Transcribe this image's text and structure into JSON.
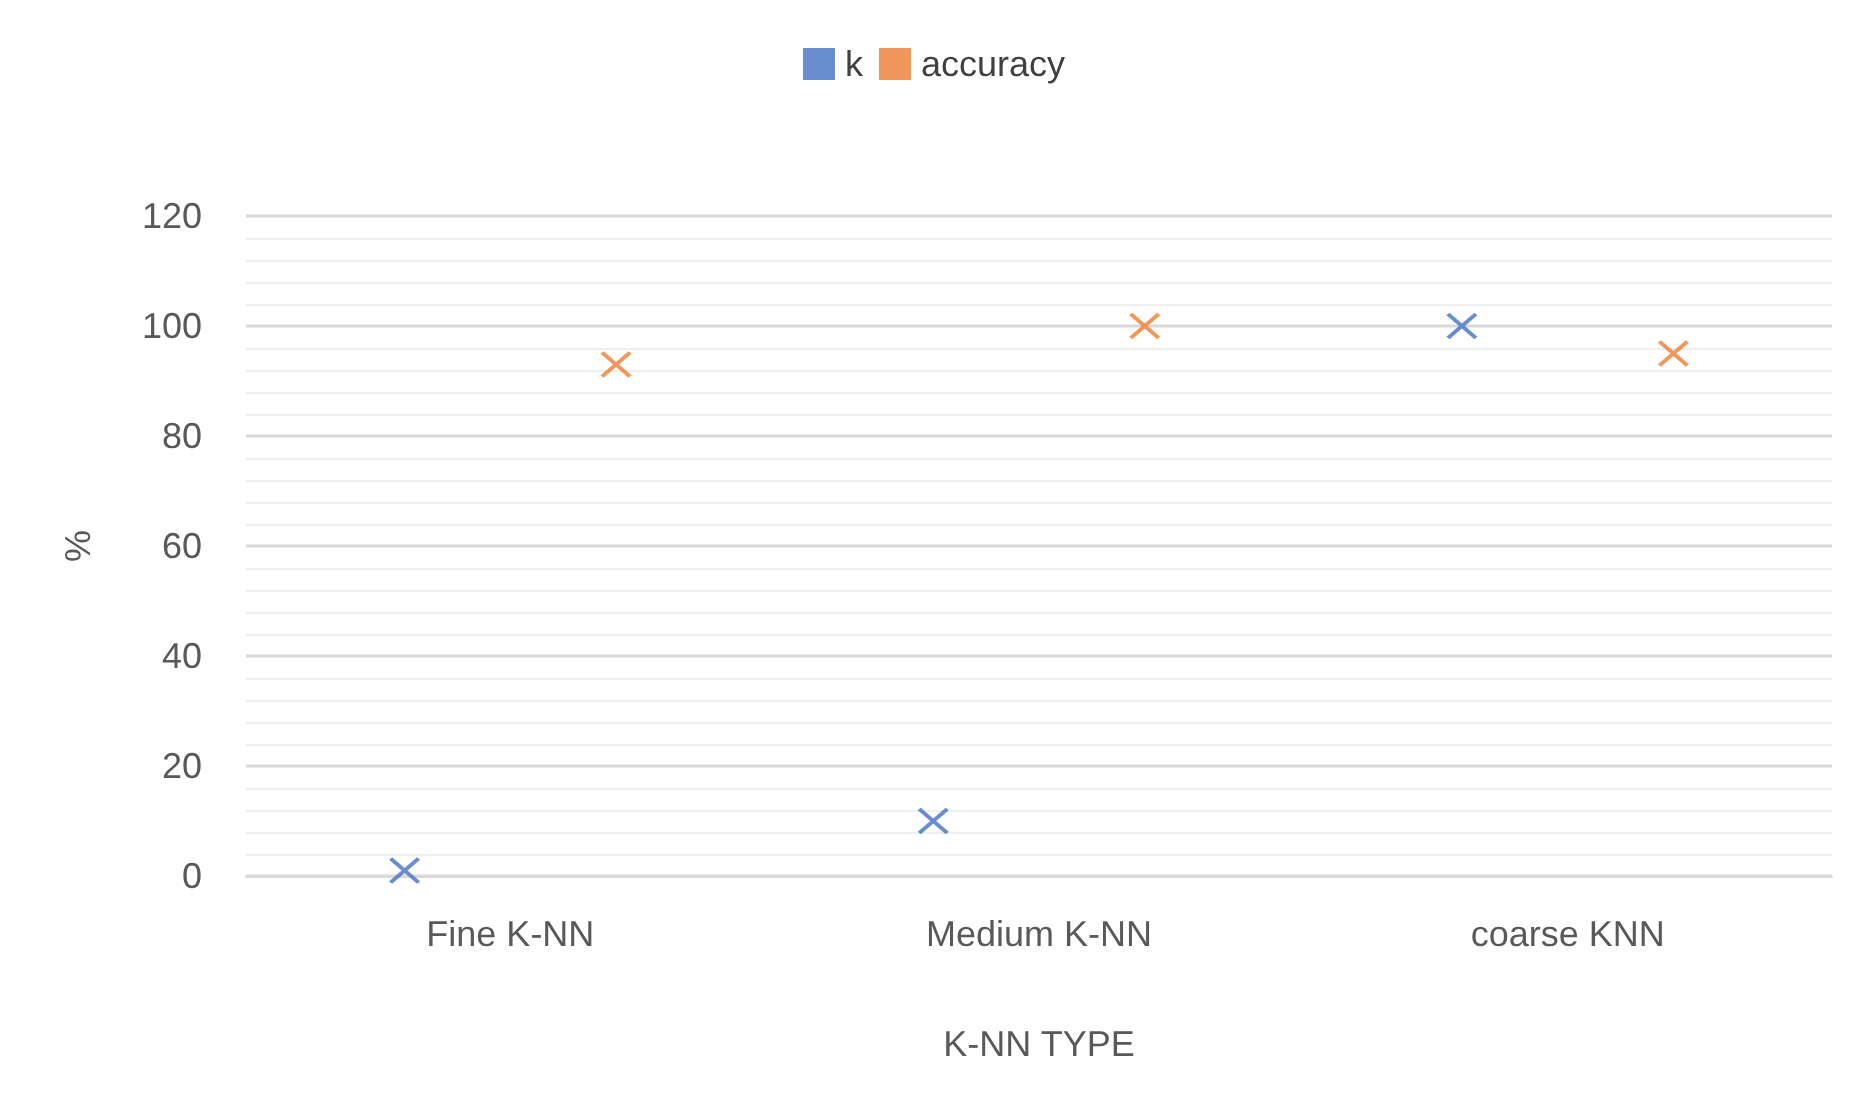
{
  "chart_data": {
    "type": "scatter",
    "xlabel": "K-NN TYPE",
    "ylabel": "%",
    "categories": [
      "Fine K-NN",
      "Medium K-NN",
      "coarse KNN"
    ],
    "series": [
      {
        "name": "k",
        "color": "#4472c4",
        "values": [
          1,
          10,
          100
        ]
      },
      {
        "name": "accuracy",
        "color": "#ed7d31",
        "values": [
          93,
          100,
          95
        ]
      }
    ],
    "ylim": [
      0,
      120
    ],
    "yticks": [
      0,
      20,
      40,
      60,
      80,
      100,
      120
    ],
    "grid": true,
    "legend": "top",
    "marker": "cross"
  }
}
